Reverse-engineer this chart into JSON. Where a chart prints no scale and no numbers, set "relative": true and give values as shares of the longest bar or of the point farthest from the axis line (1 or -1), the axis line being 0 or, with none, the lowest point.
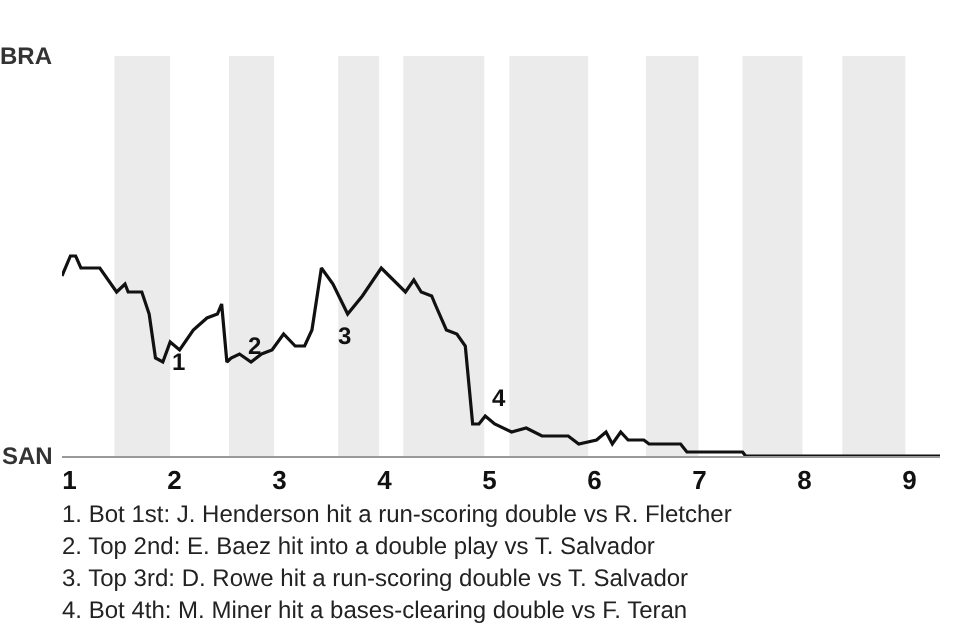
{
  "chart_data": {
    "type": "line",
    "relative": true,
    "x": [
      0.93,
      1.01,
      1.06,
      1.11,
      1.29,
      1.45,
      1.53,
      1.56,
      1.69,
      1.76,
      1.82,
      1.89,
      1.96,
      2.05,
      2.18,
      2.31,
      2.41,
      2.45,
      2.5,
      2.54,
      2.62,
      2.73,
      2.83,
      2.93,
      3.04,
      3.15,
      3.24,
      3.31,
      3.4,
      3.51,
      3.65,
      3.79,
      3.97,
      4.2,
      4.28,
      4.35,
      4.45,
      4.49,
      4.59,
      4.69,
      4.77,
      4.84,
      4.9,
      4.96,
      5.05,
      5.21,
      5.35,
      5.5,
      5.75,
      5.85,
      6.02,
      6.11,
      6.17,
      6.25,
      6.32,
      6.47,
      6.52,
      6.82,
      6.88,
      7.41,
      7.44,
      9.29
    ],
    "series": [
      {
        "color": "#111111",
        "values": [
          0.9,
          1,
          1,
          0.94,
          0.94,
          0.82,
          0.86,
          0.82,
          0.82,
          0.71,
          0.49,
          0.47,
          0.57,
          0.53,
          0.63,
          0.69,
          0.71,
          0.76,
          0.47,
          0.49,
          0.51,
          0.47,
          0.51,
          0.53,
          0.61,
          0.55,
          0.55,
          0.63,
          0.94,
          0.86,
          0.71,
          0.8,
          0.94,
          0.82,
          0.88,
          0.82,
          0.8,
          0.75,
          0.63,
          0.61,
          0.55,
          0.16,
          0.16,
          0.2,
          0.16,
          0.12,
          0.14,
          0.1,
          0.1,
          0.06,
          0.08,
          0.12,
          0.06,
          0.12,
          0.08,
          0.08,
          0.06,
          0.06,
          0.02,
          0.02,
          0,
          0
        ]
      }
    ],
    "xlim": [
      0.93,
      9.29
    ],
    "xticks": [
      1,
      2,
      3,
      4,
      5,
      6,
      7,
      8,
      9
    ],
    "marker": "none",
    "line_style": "solid",
    "bands": [
      {
        "axis": "x",
        "from": 1.43,
        "to": 1.96,
        "color": "#ebebeb"
      },
      {
        "axis": "x",
        "from": 2.52,
        "to": 2.95,
        "color": "#ebebeb"
      },
      {
        "axis": "x",
        "from": 3.56,
        "to": 3.95,
        "color": "#ebebeb"
      },
      {
        "axis": "x",
        "from": 4.18,
        "to": 4.95,
        "color": "#ebebeb"
      },
      {
        "axis": "x",
        "from": 5.19,
        "to": 5.94,
        "color": "#ebebeb"
      },
      {
        "axis": "x",
        "from": 6.49,
        "to": 6.99,
        "color": "#ebebeb"
      },
      {
        "axis": "x",
        "from": 7.41,
        "to": 7.98,
        "color": "#ebebeb"
      },
      {
        "axis": "x",
        "from": 8.36,
        "to": 8.96,
        "color": "#ebebeb"
      }
    ],
    "annotations": [
      "BRA",
      "SAN",
      {
        "text": "1",
        "x": 1.89,
        "y": 0.47
      },
      {
        "text": "2",
        "x": 2.6,
        "y": 0.55
      },
      {
        "text": "3",
        "x": 3.47,
        "y": 0.6
      },
      {
        "text": "4",
        "x": 4.92,
        "y": 0.29
      },
      "1. Bot 1st: J. Henderson hit a run-scoring double vs R. Fletcher",
      "2. Top 2nd: E. Baez hit into a double play vs T. Salvador",
      "3. Top 3rd: D. Rowe hit a run-scoring double vs T. Salvador",
      "4. Bot 4th: M. Miner hit a bases-clearing double vs F. Teran"
    ]
  }
}
